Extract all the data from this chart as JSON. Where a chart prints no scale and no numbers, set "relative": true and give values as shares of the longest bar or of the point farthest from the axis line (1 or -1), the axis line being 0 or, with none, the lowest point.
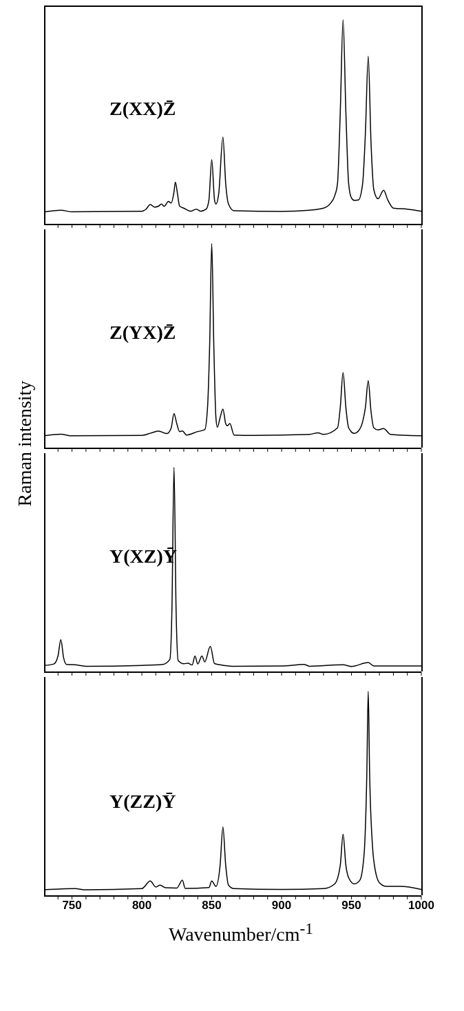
{
  "chart_data": [
    {
      "type": "line",
      "relative": true,
      "annotations": [
        "Z(XX)Z̄"
      ],
      "tick_labels": false,
      "xlim": [
        730,
        1000
      ],
      "xticks": [
        {
          "value": 740,
          "label": null
        },
        750,
        {
          "value": 760,
          "label": null
        },
        {
          "value": 770,
          "label": null
        },
        {
          "value": 780,
          "label": null
        },
        {
          "value": 790,
          "label": null
        },
        800,
        {
          "value": 810,
          "label": null
        },
        {
          "value": 820,
          "label": null
        },
        {
          "value": 830,
          "label": null
        },
        {
          "value": 840,
          "label": null
        },
        850,
        {
          "value": 860,
          "label": null
        },
        {
          "value": 870,
          "label": null
        },
        {
          "value": 880,
          "label": null
        },
        {
          "value": 890,
          "label": null
        },
        900,
        {
          "value": 910,
          "label": null
        },
        {
          "value": 920,
          "label": null
        },
        {
          "value": 930,
          "label": null
        },
        {
          "value": 940,
          "label": null
        },
        950,
        {
          "value": 960,
          "label": null
        },
        {
          "value": 970,
          "label": null
        },
        {
          "value": 980,
          "label": null
        },
        {
          "value": 990,
          "label": null
        },
        1000
      ],
      "x": [
        730,
        742,
        750,
        800,
        803,
        806,
        809,
        812,
        814,
        816,
        819,
        821,
        823,
        824,
        825.5,
        827,
        830,
        835,
        839,
        842,
        846,
        848,
        850,
        852,
        853,
        855,
        858,
        860,
        862,
        866,
        900,
        920,
        930,
        935,
        938,
        940,
        942,
        944,
        946,
        948,
        950,
        952,
        955,
        958,
        960,
        962,
        964,
        966,
        969,
        973,
        976,
        980,
        990,
        1000
      ],
      "series": [
        {
          "color": "#000000",
          "values": [
            0.061,
            0.07,
            0.062,
            0.065,
            0.075,
            0.098,
            0.085,
            0.09,
            0.1,
            0.089,
            0.113,
            0.105,
            0.16,
            0.207,
            0.15,
            0.09,
            0.08,
            0.065,
            0.075,
            0.065,
            0.075,
            0.12,
            0.317,
            0.12,
            0.1,
            0.15,
            0.427,
            0.2,
            0.1,
            0.067,
            0.064,
            0.07,
            0.08,
            0.104,
            0.14,
            0.2,
            0.55,
            1.0,
            0.55,
            0.2,
            0.13,
            0.118,
            0.12,
            0.2,
            0.45,
            0.823,
            0.4,
            0.17,
            0.126,
            0.167,
            0.12,
            0.08,
            0.075,
            0.065
          ]
        }
      ]
    },
    {
      "type": "line",
      "relative": true,
      "annotations": [
        "Z(YX)Z̄"
      ],
      "tick_labels": false,
      "ylabel": "Raman intensity",
      "xlim": [
        730,
        1000
      ],
      "xticks": [
        {
          "value": 740,
          "label": null
        },
        750,
        {
          "value": 760,
          "label": null
        },
        {
          "value": 770,
          "label": null
        },
        {
          "value": 780,
          "label": null
        },
        {
          "value": 790,
          "label": null
        },
        800,
        {
          "value": 810,
          "label": null
        },
        {
          "value": 820,
          "label": null
        },
        {
          "value": 830,
          "label": null
        },
        {
          "value": 840,
          "label": null
        },
        850,
        {
          "value": 860,
          "label": null
        },
        {
          "value": 870,
          "label": null
        },
        {
          "value": 880,
          "label": null
        },
        {
          "value": 890,
          "label": null
        },
        900,
        {
          "value": 910,
          "label": null
        },
        {
          "value": 920,
          "label": null
        },
        {
          "value": 930,
          "label": null
        },
        {
          "value": 940,
          "label": null
        },
        950,
        {
          "value": 960,
          "label": null
        },
        {
          "value": 970,
          "label": null
        },
        {
          "value": 980,
          "label": null
        },
        {
          "value": 990,
          "label": null
        },
        1000
      ],
      "x": [
        730,
        742,
        750,
        800,
        807,
        812,
        818,
        821,
        823,
        825,
        827,
        829,
        832,
        840,
        845,
        847,
        848.5,
        850,
        851.5,
        853,
        854,
        856,
        858,
        860,
        861,
        863,
        866,
        880,
        920,
        926,
        930,
        940,
        942,
        944,
        946,
        948,
        952,
        955,
        958,
        960,
        962,
        964,
        966,
        969,
        973,
        978,
        1000
      ],
      "series": [
        {
          "color": "#000000",
          "values": [
            0.061,
            0.069,
            0.061,
            0.063,
            0.076,
            0.084,
            0.072,
            0.1,
            0.17,
            0.12,
            0.082,
            0.085,
            0.065,
            0.082,
            0.091,
            0.2,
            0.5,
            1.0,
            0.5,
            0.15,
            0.103,
            0.15,
            0.192,
            0.12,
            0.11,
            0.121,
            0.065,
            0.063,
            0.068,
            0.076,
            0.068,
            0.1,
            0.2,
            0.37,
            0.2,
            0.1,
            0.073,
            0.085,
            0.13,
            0.2,
            0.331,
            0.18,
            0.1,
            0.09,
            0.097,
            0.068,
            0.061
          ]
        }
      ]
    },
    {
      "type": "line",
      "relative": true,
      "annotations": [
        "Y(XZ)Ȳ"
      ],
      "tick_labels": false,
      "xlim": [
        730,
        1000
      ],
      "xticks": [
        {
          "value": 740,
          "label": null
        },
        750,
        {
          "value": 760,
          "label": null
        },
        {
          "value": 770,
          "label": null
        },
        {
          "value": 780,
          "label": null
        },
        {
          "value": 790,
          "label": null
        },
        800,
        {
          "value": 810,
          "label": null
        },
        {
          "value": 820,
          "label": null
        },
        {
          "value": 830,
          "label": null
        },
        {
          "value": 840,
          "label": null
        },
        850,
        {
          "value": 860,
          "label": null
        },
        {
          "value": 870,
          "label": null
        },
        {
          "value": 880,
          "label": null
        },
        {
          "value": 890,
          "label": null
        },
        900,
        {
          "value": 910,
          "label": null
        },
        {
          "value": 920,
          "label": null
        },
        {
          "value": 930,
          "label": null
        },
        {
          "value": 940,
          "label": null
        },
        950,
        {
          "value": 960,
          "label": null
        },
        {
          "value": 970,
          "label": null
        },
        {
          "value": 980,
          "label": null
        },
        {
          "value": 990,
          "label": null
        },
        1000
      ],
      "x": [
        730,
        737,
        740,
        742,
        744,
        746,
        752,
        760,
        800,
        815,
        820,
        821.5,
        823,
        824.5,
        826,
        830,
        833,
        836,
        838,
        840,
        843,
        845,
        849,
        852,
        856,
        865,
        900,
        916,
        920,
        944,
        950,
        962,
        966,
        1000
      ],
      "series": [
        {
          "color": "#000000",
          "values": [
            0.033,
            0.04,
            0.08,
            0.159,
            0.07,
            0.038,
            0.036,
            0.029,
            0.033,
            0.038,
            0.062,
            0.3,
            1.0,
            0.3,
            0.056,
            0.041,
            0.044,
            0.035,
            0.079,
            0.04,
            0.079,
            0.05,
            0.126,
            0.042,
            0.036,
            0.029,
            0.03,
            0.038,
            0.029,
            0.036,
            0.028,
            0.047,
            0.03,
            0.03
          ]
        }
      ]
    },
    {
      "type": "line",
      "relative": true,
      "annotations": [
        "Y(ZZ)Ȳ"
      ],
      "tick_labels": "x",
      "xlabel": "Wavenumber/cm$^{-1}$",
      "xlim": [
        730,
        1000
      ],
      "xticks": [
        {
          "value": 740,
          "label": null
        },
        750,
        {
          "value": 760,
          "label": null
        },
        {
          "value": 770,
          "label": null
        },
        {
          "value": 780,
          "label": null
        },
        {
          "value": 790,
          "label": null
        },
        800,
        {
          "value": 810,
          "label": null
        },
        {
          "value": 820,
          "label": null
        },
        {
          "value": 830,
          "label": null
        },
        {
          "value": 840,
          "label": null
        },
        850,
        {
          "value": 860,
          "label": null
        },
        {
          "value": 870,
          "label": null
        },
        {
          "value": 880,
          "label": null
        },
        {
          "value": 890,
          "label": null
        },
        900,
        {
          "value": 910,
          "label": null
        },
        {
          "value": 920,
          "label": null
        },
        {
          "value": 930,
          "label": null
        },
        {
          "value": 940,
          "label": null
        },
        950,
        {
          "value": 960,
          "label": null
        },
        {
          "value": 970,
          "label": null
        },
        {
          "value": 980,
          "label": null
        },
        {
          "value": 990,
          "label": null
        },
        1000
      ],
      "x": [
        730,
        752,
        760,
        800,
        806,
        810,
        813,
        817,
        825,
        829,
        831,
        848,
        850,
        853,
        856,
        858,
        860,
        862,
        866,
        900,
        930,
        938,
        942,
        944,
        946,
        948,
        952,
        956,
        959,
        961,
        962,
        963,
        965,
        966,
        970,
        975,
        985,
        1000
      ],
      "series": [
        {
          "color": "#000000",
          "values": [
            0.03,
            0.036,
            0.03,
            0.036,
            0.073,
            0.044,
            0.053,
            0.04,
            0.039,
            0.077,
            0.037,
            0.041,
            0.073,
            0.047,
            0.15,
            0.337,
            0.15,
            0.053,
            0.036,
            0.032,
            0.036,
            0.059,
            0.15,
            0.302,
            0.15,
            0.089,
            0.059,
            0.077,
            0.2,
            0.6,
            1.0,
            0.6,
            0.25,
            0.172,
            0.065,
            0.047,
            0.047,
            0.032
          ]
        }
      ]
    }
  ]
}
